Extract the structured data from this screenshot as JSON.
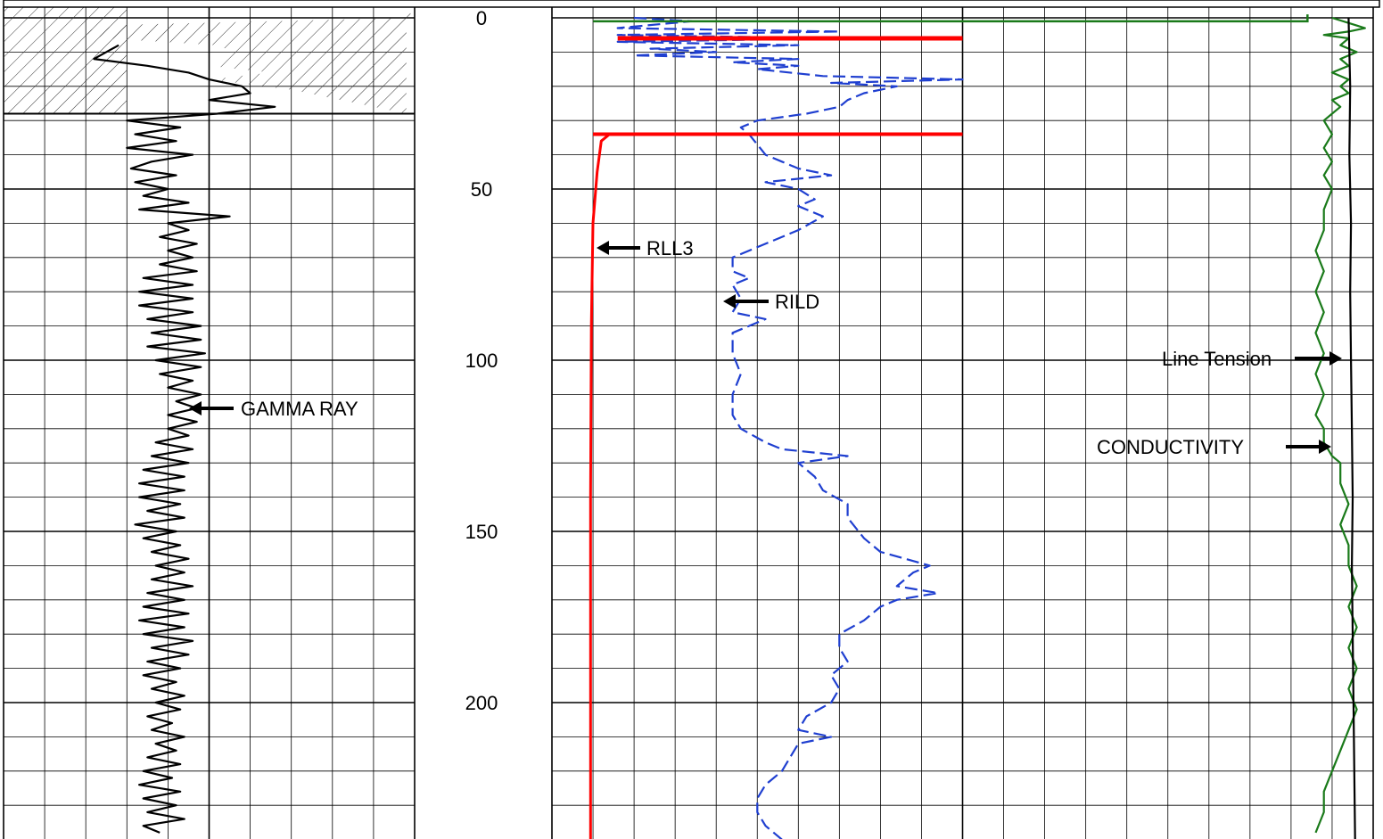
{
  "chart_data": {
    "type": "line",
    "depth_axis": {
      "ticks": [
        0,
        50,
        100,
        150,
        200
      ],
      "range": [
        0,
        240
      ]
    },
    "series": [
      {
        "name": "GAMMA RAY",
        "track": "left",
        "color": "#000000",
        "style": "solid",
        "points": [
          [
            0.28,
            8
          ],
          [
            0.22,
            12
          ],
          [
            0.35,
            14
          ],
          [
            0.45,
            16
          ],
          [
            0.5,
            18
          ],
          [
            0.58,
            20
          ],
          [
            0.6,
            22
          ],
          [
            0.5,
            24
          ],
          [
            0.66,
            26
          ],
          [
            0.52,
            28
          ],
          [
            0.3,
            30
          ],
          [
            0.43,
            32
          ],
          [
            0.32,
            34
          ],
          [
            0.42,
            36
          ],
          [
            0.3,
            38
          ],
          [
            0.46,
            40
          ],
          [
            0.36,
            42
          ],
          [
            0.31,
            44
          ],
          [
            0.42,
            46
          ],
          [
            0.32,
            48
          ],
          [
            0.4,
            50
          ],
          [
            0.34,
            52
          ],
          [
            0.45,
            54
          ],
          [
            0.33,
            56
          ],
          [
            0.55,
            58
          ],
          [
            0.4,
            60
          ],
          [
            0.45,
            62
          ],
          [
            0.38,
            64
          ],
          [
            0.47,
            66
          ],
          [
            0.4,
            68
          ],
          [
            0.46,
            70
          ],
          [
            0.38,
            72
          ],
          [
            0.47,
            74
          ],
          [
            0.34,
            76
          ],
          [
            0.46,
            78
          ],
          [
            0.33,
            80
          ],
          [
            0.46,
            82
          ],
          [
            0.33,
            84
          ],
          [
            0.46,
            86
          ],
          [
            0.35,
            88
          ],
          [
            0.48,
            90
          ],
          [
            0.36,
            92
          ],
          [
            0.48,
            94
          ],
          [
            0.35,
            96
          ],
          [
            0.49,
            98
          ],
          [
            0.37,
            100
          ],
          [
            0.48,
            102
          ],
          [
            0.38,
            104
          ],
          [
            0.46,
            106
          ],
          [
            0.4,
            108
          ],
          [
            0.48,
            110
          ],
          [
            0.42,
            112
          ],
          [
            0.47,
            114
          ],
          [
            0.4,
            116
          ],
          [
            0.47,
            118
          ],
          [
            0.4,
            120
          ],
          [
            0.45,
            122
          ],
          [
            0.37,
            124
          ],
          [
            0.46,
            126
          ],
          [
            0.36,
            128
          ],
          [
            0.45,
            130
          ],
          [
            0.34,
            132
          ],
          [
            0.44,
            134
          ],
          [
            0.33,
            136
          ],
          [
            0.44,
            138
          ],
          [
            0.33,
            140
          ],
          [
            0.43,
            142
          ],
          [
            0.35,
            144
          ],
          [
            0.44,
            146
          ],
          [
            0.32,
            148
          ],
          [
            0.42,
            150
          ],
          [
            0.34,
            152
          ],
          [
            0.43,
            154
          ],
          [
            0.36,
            156
          ],
          [
            0.45,
            158
          ],
          [
            0.37,
            160
          ],
          [
            0.44,
            162
          ],
          [
            0.36,
            164
          ],
          [
            0.46,
            166
          ],
          [
            0.35,
            168
          ],
          [
            0.44,
            170
          ],
          [
            0.34,
            172
          ],
          [
            0.45,
            174
          ],
          [
            0.33,
            176
          ],
          [
            0.44,
            178
          ],
          [
            0.34,
            180
          ],
          [
            0.46,
            182
          ],
          [
            0.36,
            184
          ],
          [
            0.45,
            186
          ],
          [
            0.35,
            188
          ],
          [
            0.43,
            190
          ],
          [
            0.34,
            192
          ],
          [
            0.42,
            194
          ],
          [
            0.36,
            196
          ],
          [
            0.44,
            198
          ],
          [
            0.37,
            200
          ],
          [
            0.43,
            202
          ],
          [
            0.35,
            204
          ],
          [
            0.41,
            206
          ],
          [
            0.36,
            208
          ],
          [
            0.44,
            210
          ],
          [
            0.37,
            212
          ],
          [
            0.42,
            214
          ],
          [
            0.35,
            216
          ],
          [
            0.43,
            218
          ],
          [
            0.34,
            220
          ],
          [
            0.41,
            222
          ],
          [
            0.33,
            224
          ],
          [
            0.43,
            226
          ],
          [
            0.34,
            228
          ],
          [
            0.42,
            230
          ],
          [
            0.35,
            232
          ],
          [
            0.44,
            234
          ],
          [
            0.34,
            236
          ],
          [
            0.38,
            238
          ]
        ]
      },
      {
        "name": "RLL3",
        "track": "right",
        "color": "#ff0000",
        "style": "solid",
        "points": [
          [
            0.05,
            34
          ],
          [
            0.07,
            34
          ],
          [
            0.06,
            36
          ],
          [
            0.055,
            45
          ],
          [
            0.05,
            60
          ],
          [
            0.048,
            90
          ],
          [
            0.047,
            140
          ],
          [
            0.047,
            200
          ],
          [
            0.047,
            240
          ]
        ]
      },
      {
        "name": "RILD",
        "track": "right",
        "color": "#1f3fd0",
        "style": "dashed",
        "points": [
          [
            0.1,
            0
          ],
          [
            0.17,
            1
          ],
          [
            0.08,
            3
          ],
          [
            0.35,
            4
          ],
          [
            0.08,
            5
          ],
          [
            0.35,
            6
          ],
          [
            0.08,
            7
          ],
          [
            0.3,
            8
          ],
          [
            0.12,
            9
          ],
          [
            0.2,
            10
          ],
          [
            0.1,
            11
          ],
          [
            0.3,
            12
          ],
          [
            0.22,
            13
          ],
          [
            0.3,
            14
          ],
          [
            0.25,
            15
          ],
          [
            0.33,
            17
          ],
          [
            0.5,
            18
          ],
          [
            0.34,
            19
          ],
          [
            0.42,
            20
          ],
          [
            0.38,
            22
          ],
          [
            0.36,
            24
          ],
          [
            0.35,
            26
          ],
          [
            0.31,
            28
          ],
          [
            0.25,
            30
          ],
          [
            0.23,
            32
          ],
          [
            0.24,
            34
          ],
          [
            0.25,
            37
          ],
          [
            0.26,
            40
          ],
          [
            0.28,
            42
          ],
          [
            0.3,
            44
          ],
          [
            0.34,
            46
          ],
          [
            0.26,
            48
          ],
          [
            0.3,
            50
          ],
          [
            0.32,
            53
          ],
          [
            0.3,
            55
          ],
          [
            0.33,
            58
          ],
          [
            0.3,
            62
          ],
          [
            0.26,
            66
          ],
          [
            0.22,
            70
          ],
          [
            0.22,
            74
          ],
          [
            0.24,
            76
          ],
          [
            0.22,
            78
          ],
          [
            0.23,
            82
          ],
          [
            0.22,
            86
          ],
          [
            0.26,
            88
          ],
          [
            0.22,
            92
          ],
          [
            0.22,
            98
          ],
          [
            0.23,
            104
          ],
          [
            0.22,
            110
          ],
          [
            0.22,
            116
          ],
          [
            0.23,
            120
          ],
          [
            0.26,
            124
          ],
          [
            0.28,
            126
          ],
          [
            0.36,
            128
          ],
          [
            0.3,
            130
          ],
          [
            0.32,
            134
          ],
          [
            0.33,
            138
          ],
          [
            0.36,
            142
          ],
          [
            0.36,
            146
          ],
          [
            0.38,
            152
          ],
          [
            0.4,
            156
          ],
          [
            0.43,
            158
          ],
          [
            0.46,
            160
          ],
          [
            0.44,
            162
          ],
          [
            0.42,
            166
          ],
          [
            0.47,
            168
          ],
          [
            0.42,
            170
          ],
          [
            0.4,
            172
          ],
          [
            0.38,
            176
          ],
          [
            0.35,
            180
          ],
          [
            0.35,
            184
          ],
          [
            0.36,
            188
          ],
          [
            0.34,
            192
          ],
          [
            0.35,
            196
          ],
          [
            0.34,
            200
          ],
          [
            0.31,
            204
          ],
          [
            0.3,
            208
          ],
          [
            0.34,
            210
          ],
          [
            0.3,
            212
          ],
          [
            0.29,
            216
          ],
          [
            0.28,
            220
          ],
          [
            0.26,
            224
          ],
          [
            0.25,
            228
          ],
          [
            0.25,
            232
          ],
          [
            0.26,
            236
          ],
          [
            0.28,
            240
          ]
        ]
      },
      {
        "name": "CONDUCTIVITY",
        "track": "right",
        "color": "#1a7a1a",
        "style": "solid",
        "points": [
          [
            0.95,
            0
          ],
          [
            0.99,
            3
          ],
          [
            0.97,
            4
          ],
          [
            0.94,
            5
          ],
          [
            0.97,
            6
          ],
          [
            0.96,
            8
          ],
          [
            0.98,
            10
          ],
          [
            0.96,
            12
          ],
          [
            0.97,
            14
          ],
          [
            0.95,
            16
          ],
          [
            0.97,
            18
          ],
          [
            0.96,
            20
          ],
          [
            0.97,
            22
          ],
          [
            0.95,
            24
          ],
          [
            0.96,
            26
          ],
          [
            0.95,
            28
          ],
          [
            0.94,
            30
          ],
          [
            0.95,
            34
          ],
          [
            0.94,
            38
          ],
          [
            0.95,
            42
          ],
          [
            0.94,
            46
          ],
          [
            0.95,
            50
          ],
          [
            0.94,
            56
          ],
          [
            0.94,
            62
          ],
          [
            0.93,
            68
          ],
          [
            0.94,
            74
          ],
          [
            0.93,
            80
          ],
          [
            0.94,
            86
          ],
          [
            0.93,
            92
          ],
          [
            0.94,
            98
          ],
          [
            0.93,
            104
          ],
          [
            0.94,
            110
          ],
          [
            0.93,
            116
          ],
          [
            0.94,
            120
          ],
          [
            0.94,
            124
          ],
          [
            0.95,
            128
          ],
          [
            0.96,
            130
          ],
          [
            0.96,
            136
          ],
          [
            0.97,
            142
          ],
          [
            0.96,
            148
          ],
          [
            0.97,
            154
          ],
          [
            0.97,
            160
          ],
          [
            0.98,
            166
          ],
          [
            0.97,
            172
          ],
          [
            0.98,
            178
          ],
          [
            0.97,
            184
          ],
          [
            0.98,
            190
          ],
          [
            0.97,
            196
          ],
          [
            0.98,
            202
          ],
          [
            0.97,
            208
          ],
          [
            0.96,
            214
          ],
          [
            0.95,
            220
          ],
          [
            0.94,
            226
          ],
          [
            0.94,
            232
          ],
          [
            0.93,
            238
          ]
        ]
      },
      {
        "name": "Line Tension",
        "track": "right",
        "color": "#000000",
        "style": "solid",
        "points": [
          [
            0.97,
            0
          ],
          [
            0.972,
            20
          ],
          [
            0.971,
            40
          ],
          [
            0.973,
            60
          ],
          [
            0.972,
            80
          ],
          [
            0.973,
            100
          ],
          [
            0.974,
            120
          ],
          [
            0.975,
            140
          ],
          [
            0.974,
            160
          ],
          [
            0.975,
            180
          ],
          [
            0.976,
            200
          ],
          [
            0.977,
            220
          ],
          [
            0.978,
            240
          ]
        ]
      }
    ],
    "annotations": [
      "GAMMA RAY",
      "RLL3",
      "RILD",
      "Line Tension",
      "CONDUCTIVITY"
    ],
    "grid": true
  }
}
